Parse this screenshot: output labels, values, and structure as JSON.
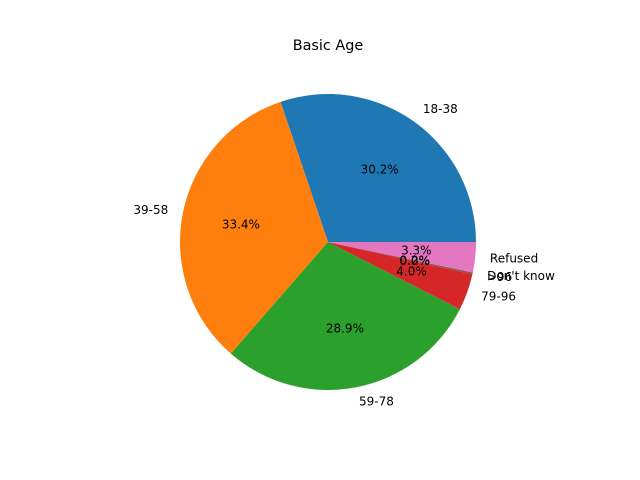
{
  "chart_data": {
    "type": "pie",
    "title": "Basic Age",
    "slices": [
      {
        "label": "18-38",
        "value": 30.2,
        "pct_label": "30.2%",
        "color": "#1f77b4"
      },
      {
        "label": "39-58",
        "value": 33.4,
        "pct_label": "33.4%",
        "color": "#ff7f0e"
      },
      {
        "label": "59-78",
        "value": 28.9,
        "pct_label": "28.9%",
        "color": "#2ca02c"
      },
      {
        "label": "79-96",
        "value": 4.0,
        "pct_label": "4.0%",
        "color": "#d62728"
      },
      {
        "label": ">96",
        "value": 0.0,
        "pct_label": "0.0%",
        "color": "#9467bd"
      },
      {
        "label": "Don't know",
        "value": 0.2,
        "pct_label": "0.2%",
        "color": "#8c564b"
      },
      {
        "label": "Refused",
        "value": 3.3,
        "pct_label": "3.3%",
        "color": "#e377c2"
      }
    ],
    "start_angle_deg": 0,
    "direction": "counterclockwise",
    "legend": "none"
  }
}
